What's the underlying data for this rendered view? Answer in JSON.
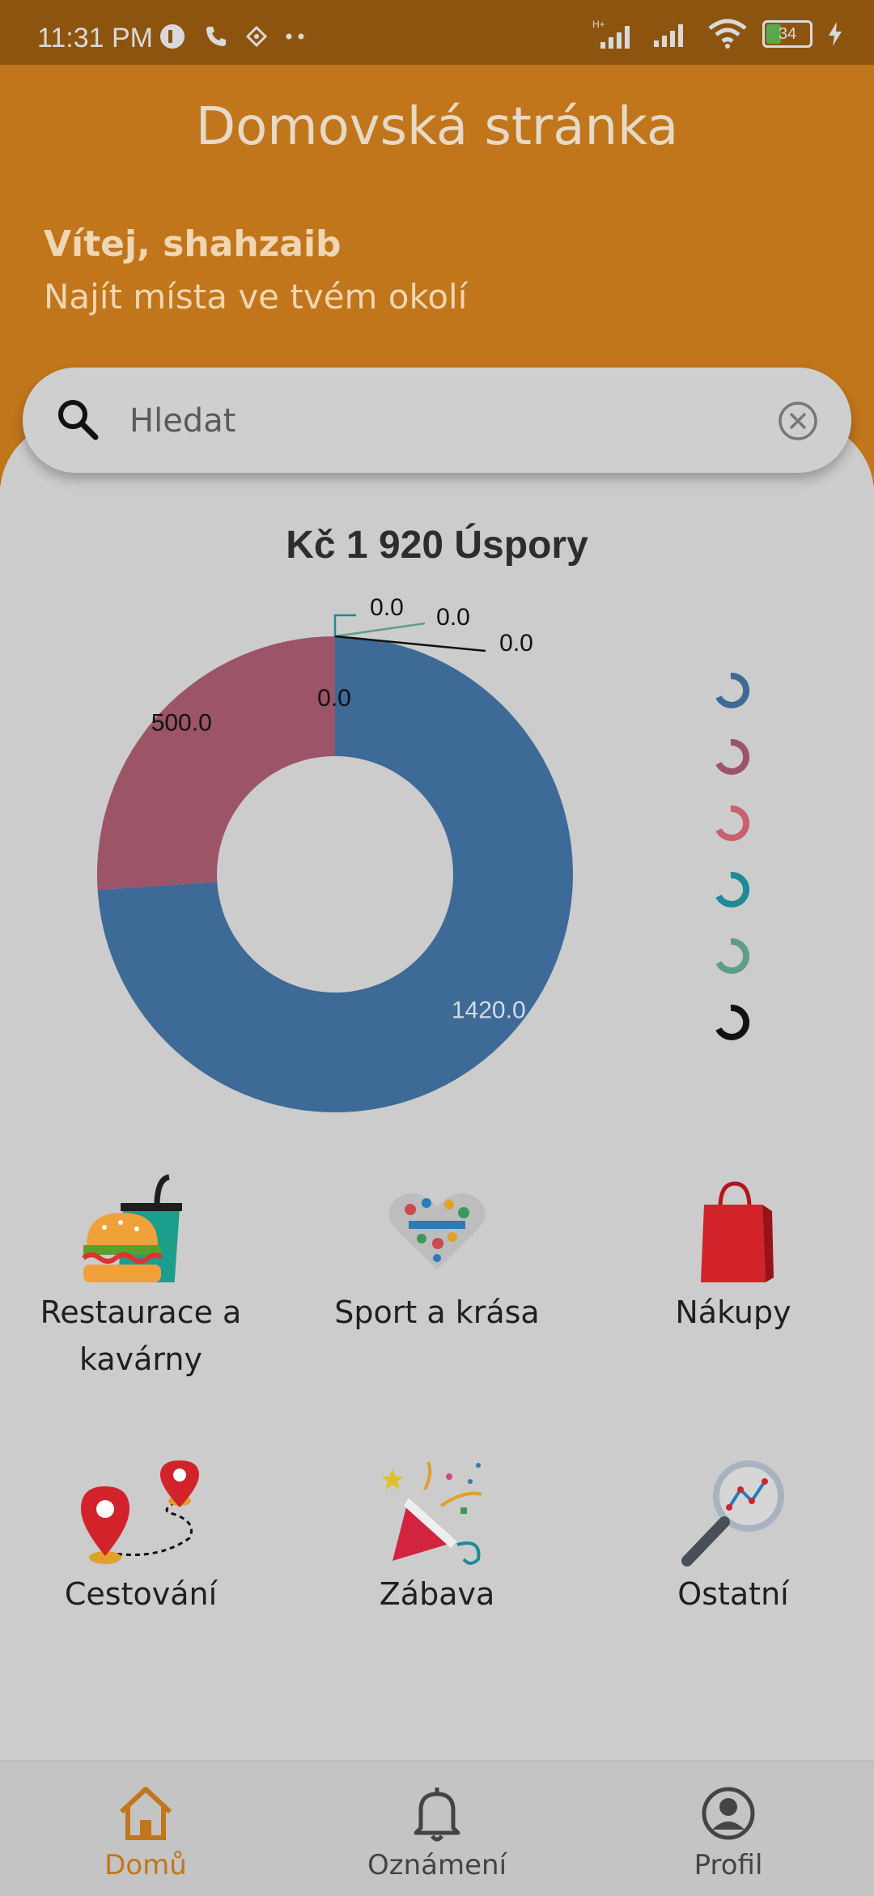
{
  "status_bar": {
    "time": "11:31 PM",
    "battery": "34",
    "network_label": "H+"
  },
  "header": {
    "title": "Domovská stránka",
    "welcome": "Vítej, shahzaib",
    "subtitle": "Najít místa ve tvém okolí"
  },
  "search": {
    "placeholder": "Hledat",
    "value": ""
  },
  "chart": {
    "title": "Kč 1 920 Úspory"
  },
  "chart_data": {
    "type": "pie",
    "donut": true,
    "title": "Kč 1 920 Úspory",
    "values": [
      1420.0,
      500.0,
      0.0,
      0.0,
      0.0,
      0.0
    ],
    "labels": [
      "1420.0",
      "500.0",
      "0.0",
      "0.0",
      "0.0",
      "0.0"
    ],
    "colors": [
      "#3d6a96",
      "#9b5468",
      "#c8606e",
      "#1f8a96",
      "#5f9d8b",
      "#111111"
    ],
    "legend_position": "right"
  },
  "categories": [
    {
      "label": "Restaurace a kavárny",
      "icon": "burger-drink-icon"
    },
    {
      "label": "Sport a krása",
      "icon": "heart-lifestyle-icon"
    },
    {
      "label": "Nákupy",
      "icon": "shopping-bag-icon"
    },
    {
      "label": "Cestování",
      "icon": "map-pins-route-icon"
    },
    {
      "label": "Zábava",
      "icon": "party-popper-icon"
    },
    {
      "label": "Ostatní",
      "icon": "magnifier-chart-icon"
    }
  ],
  "bottom_nav": [
    {
      "label": "Domů",
      "icon": "home-icon",
      "active": true
    },
    {
      "label": "Oznámení",
      "icon": "bell-icon",
      "active": false
    },
    {
      "label": "Profil",
      "icon": "profile-icon",
      "active": false
    }
  ],
  "colors": {
    "accent": "#c1761b",
    "background": "#cccccc"
  }
}
